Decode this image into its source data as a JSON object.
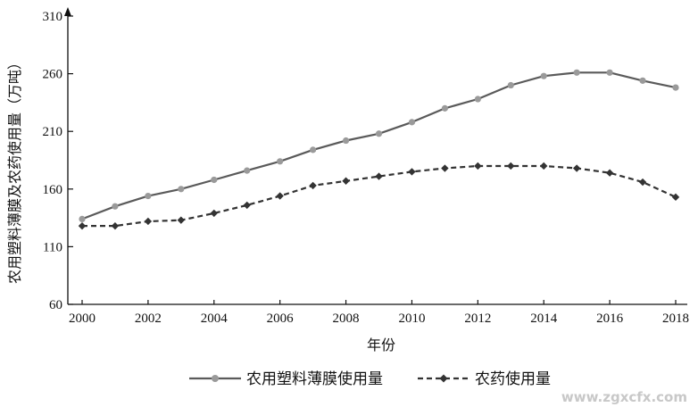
{
  "chart_data": {
    "type": "line",
    "title": "",
    "xlabel": "年份",
    "ylabel": "农用塑料薄膜及农药使用量（万吨）",
    "ylim": [
      60,
      310
    ],
    "yticks": [
      60,
      110,
      160,
      210,
      260,
      310
    ],
    "xlim": [
      2000,
      2018
    ],
    "xticks": [
      2000,
      2002,
      2004,
      2006,
      2008,
      2010,
      2012,
      2014,
      2016,
      2018
    ],
    "grid": false,
    "legend_position": "bottom",
    "x": [
      2000,
      2001,
      2002,
      2003,
      2004,
      2005,
      2006,
      2007,
      2008,
      2009,
      2010,
      2011,
      2012,
      2013,
      2014,
      2015,
      2016,
      2017,
      2018
    ],
    "series": [
      {
        "name": "农用塑料薄膜使用量",
        "style": "solid",
        "marker": "circle",
        "color": "#5a5a5a",
        "values": [
          134,
          145,
          154,
          160,
          168,
          176,
          184,
          194,
          202,
          208,
          218,
          230,
          238,
          250,
          258,
          261,
          261,
          254,
          248
        ]
      },
      {
        "name": "农药使用量",
        "style": "dashed",
        "marker": "diamond",
        "color": "#333333",
        "values": [
          128,
          128,
          132,
          133,
          139,
          146,
          154,
          163,
          167,
          171,
          175,
          178,
          180,
          180,
          180,
          178,
          174,
          166,
          153
        ]
      }
    ]
  },
  "watermark": "www.zgxcfx.com"
}
